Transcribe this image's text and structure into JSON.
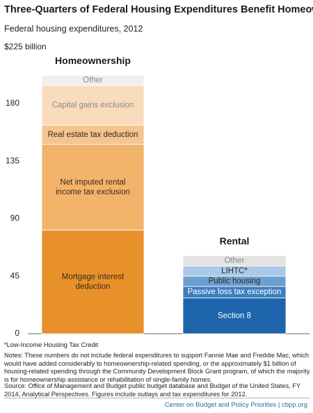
{
  "chart_data": {
    "type": "stacked_bar",
    "title": "Three-Quarters of Federal Housing Expenditures Benefit Homeowners",
    "subtitle": "Federal housing expenditures, 2012",
    "ylim": [
      0,
      225
    ],
    "yticks": [
      0,
      45,
      90,
      135,
      180,
      {
        "value": 225,
        "label": "$225 billion"
      }
    ],
    "bars": [
      {
        "name": "Homeownership",
        "segments": [
          {
            "label": [
              "Mortgage interest",
              "deduction"
            ],
            "value": 81,
            "color": "#e8912a"
          },
          {
            "label": [
              "Net imputed rental",
              "income tax exclusion"
            ],
            "value": 67,
            "color": "#f2b36b"
          },
          {
            "label": [
              "Real estate tax deduction"
            ],
            "value": 15,
            "color": "#f5c48f"
          },
          {
            "label": [
              "Capital gains exclusion"
            ],
            "value": 31,
            "color": "#f9dcbc"
          },
          {
            "label": [
              "Other"
            ],
            "value": 8,
            "color": "#f2eeea"
          }
        ]
      },
      {
        "name": "Rental",
        "segments": [
          {
            "label": [
              "Section 8"
            ],
            "value": 28,
            "color": "#1d64ad"
          },
          {
            "label": [
              "Passive loss tax exception"
            ],
            "value": 9,
            "color": "#3d7fbf"
          },
          {
            "label": [
              "Public housing"
            ],
            "value": 8,
            "color": "#6a9fd0"
          },
          {
            "label": [
              "LIHTC*"
            ],
            "value": 8,
            "color": "#a9c9e6"
          },
          {
            "label": [
              "Other"
            ],
            "value": 8,
            "color": "#e3e3e3"
          }
        ]
      }
    ]
  },
  "footnote": "*Low-Income Housing Tax Credit",
  "notes": "Notes: These numbers do not include federal expenditures to support Fannie Mae and Freddie Mac, which would have added considerably to homeownership-related spending, or the approximately $1 billion of housing-related spending through the Community Development Block Grant program, of which the majority is for homeownership assistance or rehabilitation of single-family homes.",
  "source": "Source: Office of Management and Budget public budget database and Budget of the United States, FY 2014, Analytical Perspectives. Figures include outlays and tax expenditures for 2012.",
  "footer": "Center on Budget and Policy Priorities | cbpp.org"
}
